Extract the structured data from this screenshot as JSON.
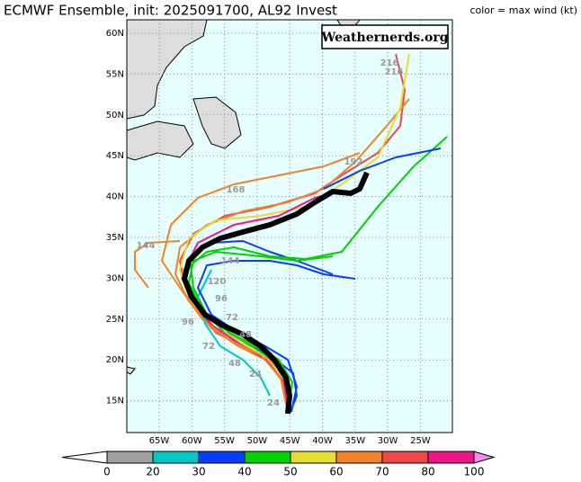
{
  "header": {
    "title": "ECMWF Ensemble, init: 2025091700, AL92 Invest",
    "legend_note": "color = max wind (kt)"
  },
  "map": {
    "watermark": "Weathernerds.org",
    "lat_labels": [
      "60N",
      "55N",
      "50N",
      "45N",
      "40N",
      "35N",
      "30N",
      "25N",
      "20N",
      "15N"
    ],
    "lon_labels": [
      "65W",
      "60W",
      "55W",
      "50W",
      "45W",
      "40W",
      "35W",
      "30W",
      "25W"
    ],
    "hour_labels": [
      "216",
      "216",
      "192",
      "168",
      "144",
      "144",
      "120",
      "96",
      "96",
      "72",
      "72",
      "48",
      "48",
      "24",
      "24"
    ]
  },
  "colorbar": {
    "labels": [
      "0",
      "20",
      "30",
      "40",
      "50",
      "60",
      "70",
      "80",
      "100"
    ],
    "colors": [
      "#a0a0a0",
      "#00c8c8",
      "#0a3cff",
      "#00d200",
      "#e6dc32",
      "#f08228",
      "#f04646",
      "#f0148c"
    ],
    "end_colors": [
      "#ffffff",
      "#f08cf0"
    ]
  }
}
